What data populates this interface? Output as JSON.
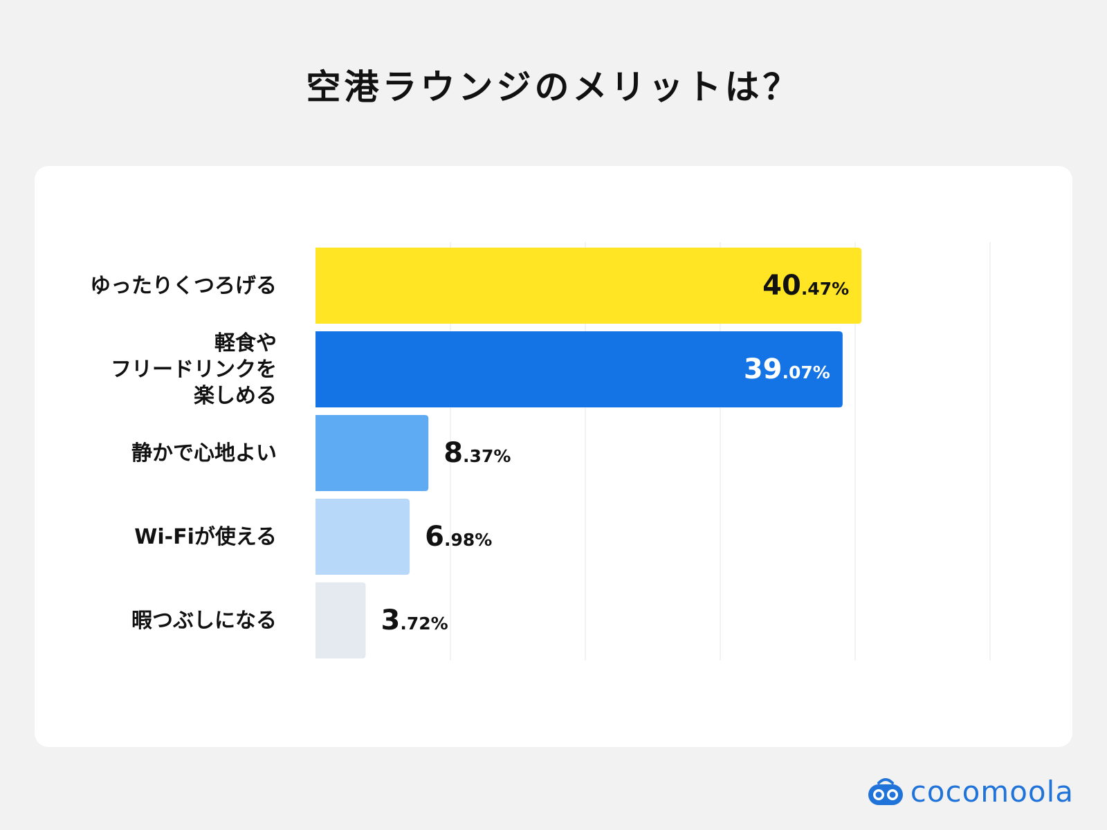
{
  "chart_data": {
    "type": "bar",
    "orientation": "horizontal",
    "title": "空港ラウンジのメリットは？",
    "categories": [
      [
        "ゆったりくつろげる"
      ],
      [
        "軽食や",
        "フリードリンクを",
        "楽しめる"
      ],
      [
        "静かで心地よい"
      ],
      [
        "Wi-Fiが使える"
      ],
      [
        "暇つぶしになる"
      ]
    ],
    "values": [
      40.47,
      39.07,
      8.37,
      6.98,
      3.72
    ],
    "value_labels": [
      {
        "int": "40",
        "dec": ".47%"
      },
      {
        "int": "39",
        "dec": ".07%"
      },
      {
        "int": "8",
        "dec": ".37%"
      },
      {
        "int": "6",
        "dec": ".98%"
      },
      {
        "int": "3",
        "dec": ".72%"
      }
    ],
    "colors": [
      "#ffe523",
      "#1574e5",
      "#5eaaf3",
      "#b8d8fa",
      "#e5eaf1"
    ],
    "label_colors": [
      "#111111",
      "#ffffff",
      "#111111",
      "#111111",
      "#111111"
    ],
    "labels_inside": [
      true,
      true,
      false,
      false,
      false
    ],
    "xlim": [
      0,
      50
    ],
    "grid": true,
    "legend": "none"
  },
  "brand": {
    "name": "cocomoola",
    "color": "#1f73d9"
  }
}
